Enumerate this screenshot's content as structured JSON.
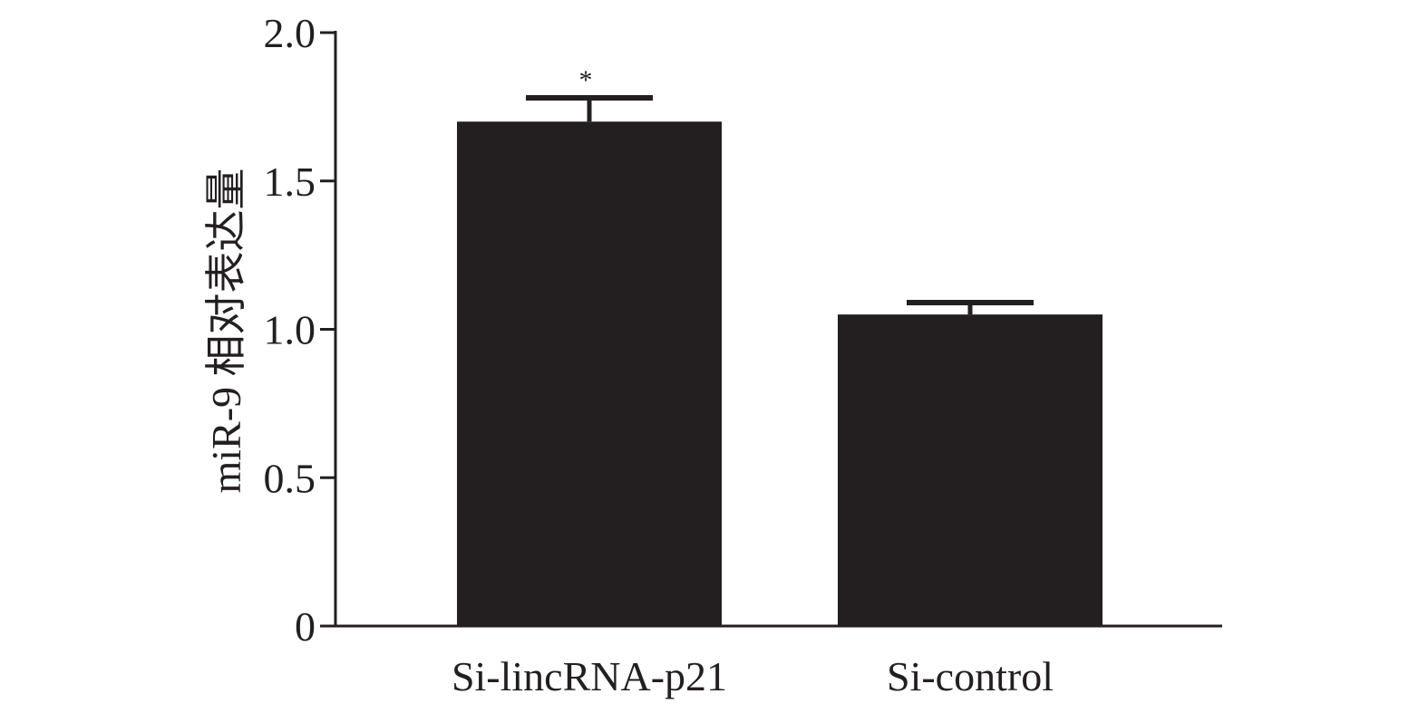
{
  "chart_data": {
    "type": "bar",
    "title": "",
    "xlabel": "",
    "ylabel": "miR-9 相对表达量",
    "ylim": [
      0,
      2.0
    ],
    "yticks": [
      0,
      0.5,
      1.0,
      1.5,
      2.0
    ],
    "ytick_labels": [
      "0",
      "0.5",
      "1.0",
      "1.5",
      "2.0"
    ],
    "categories": [
      "Si-lincRNA-p21",
      "Si-control"
    ],
    "values": [
      1.7,
      1.05
    ],
    "error_upper": [
      0.08,
      0.04
    ],
    "significance": [
      "*",
      ""
    ],
    "bar_color": "#231f20",
    "axis_color": "#231f20",
    "grid": false,
    "legend": "none"
  }
}
